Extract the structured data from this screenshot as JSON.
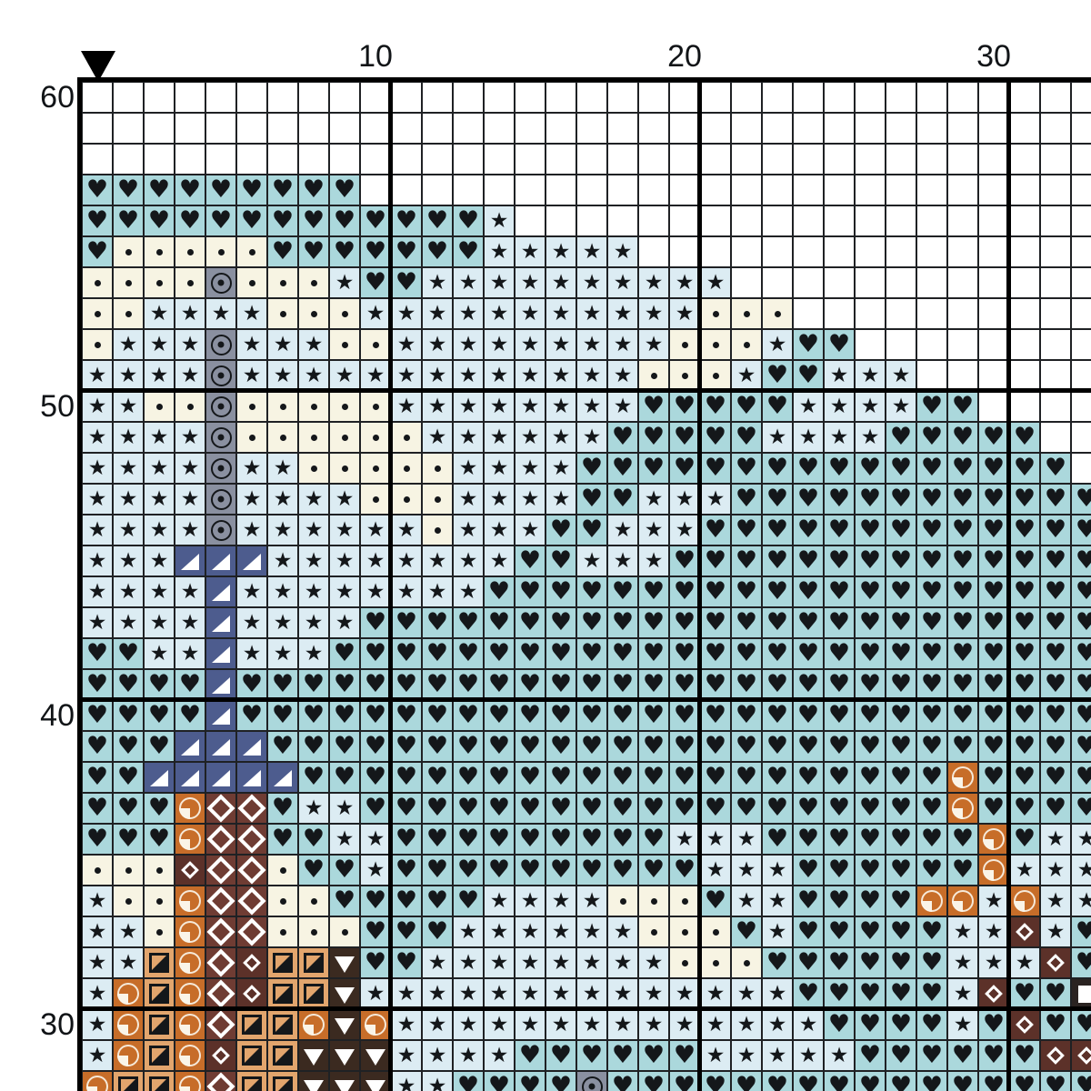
{
  "pattern": {
    "column_labels": [
      {
        "text": "10"
      },
      {
        "text": "20"
      },
      {
        "text": "30"
      }
    ],
    "row_labels": [
      {
        "text": "60"
      },
      {
        "text": "50"
      },
      {
        "text": "40"
      },
      {
        "text": "30"
      }
    ],
    "start_marker": {
      "icon": "down-triangle",
      "color": "#000000",
      "at_column": 1
    },
    "grid_lines": {
      "thin": "#1f2124",
      "thick": "#000000",
      "major_every": 10
    },
    "palette": {
      ".": {
        "name": "empty",
        "bg": "#ffffff"
      },
      "h": {
        "name": "heart",
        "bg": "#abd8dc",
        "glyph": "♥",
        "glyph_color": "#14171a"
      },
      "s": {
        "name": "star",
        "bg": "#dcecf3",
        "glyph": "★",
        "glyph_color": "#14171a"
      },
      "d": {
        "name": "small-dot",
        "bg": "#f7f4e3",
        "glyph": "•",
        "glyph_color": "#14171a"
      },
      "t": {
        "name": "circled-dot",
        "bg": "#8a90a0",
        "glyph": "◉",
        "glyph_color": "#14171a"
      },
      "n": {
        "name": "corner-triangle",
        "bg": "#4d5c8e",
        "glyph": "◢",
        "glyph_color": "#ffffff"
      },
      "q": {
        "name": "quarter-circle",
        "bg": "#c76d29",
        "glyph": "◔",
        "glyph_color": "#faf4e8"
      },
      "g": {
        "name": "diagonal-half-square",
        "bg": "#e2a56d",
        "glyph": "◪",
        "glyph_color": "#14171a"
      },
      "D": {
        "name": "diamond-outline",
        "bg": "#6f3c33",
        "glyph": "◇",
        "glyph_color": "#ffffff"
      },
      "m": {
        "name": "small-diamond-outline",
        "bg": "#5c3129",
        "glyph": "◇",
        "glyph_color": "#ffffff"
      },
      "v": {
        "name": "down-triangle",
        "bg": "#3b2a20",
        "glyph": "▼",
        "glyph_color": "#ffffff"
      },
      "w": {
        "name": "solid-square",
        "bg": "#2a2321",
        "glyph": "■",
        "glyph_color": "#ffffff"
      }
    },
    "rows": [
      {
        "row": 60,
        "cells": "................................."
      },
      {
        "row": 59,
        "cells": "................................."
      },
      {
        "row": 58,
        "cells": "................................."
      },
      {
        "row": 57,
        "cells": "hhhhhhhhh........................"
      },
      {
        "row": 56,
        "cells": "hhhhhhhhhhhhhs..................."
      },
      {
        "row": 55,
        "cells": "hdddddhhhhhhhsssss..............."
      },
      {
        "row": 54,
        "cells": "ddddtdddshhssssssssss............"
      },
      {
        "row": 53,
        "cells": "ddssssdddsssssssssssddd.........."
      },
      {
        "row": 52,
        "cells": "dssstsssddsssssssssdddshh........"
      },
      {
        "row": 51,
        "cells": "sssstsssssssssssssdddshhsss......"
      },
      {
        "row": 50,
        "cells": "ssddtdddddsssssssshhhhhsssshh...."
      },
      {
        "row": 49,
        "cells": "sssstddddddsssssshhhhhsssshhhhh.."
      },
      {
        "row": 48,
        "cells": "sssstssdddddsssshhhhhhhhhhhhhhhh."
      },
      {
        "row": 47,
        "cells": "sssstssssdddsssshhssshhhhhhhhhhhh"
      },
      {
        "row": 46,
        "cells": "sssstssssssdssshhssshhhhhhhhhhhhh"
      },
      {
        "row": 45,
        "cells": "sssnnnsssssssshhssshhhhhhhhhhhhhh"
      },
      {
        "row": 44,
        "cells": "ssssnsssssssshhhhhhhhhhhhhhhhhhhh"
      },
      {
        "row": 43,
        "cells": "ssssnsssshhhhhhhhhhhhhhhhhhhhhhhh"
      },
      {
        "row": 42,
        "cells": "hhssnssshhhhhhhhhhhhhhhhhhhhhhhhh"
      },
      {
        "row": 41,
        "cells": "hhhhnhhhhhhhhhhhhhhhhhhhhhhhhhhhh"
      },
      {
        "row": 40,
        "cells": "hhhhnhhhhhhhhhhhhhhhhhhhhhhhhhhhh"
      },
      {
        "row": 39,
        "cells": "hhhnnnhhhhhhhhhhhhhhhhhhhhhhhhhhh"
      },
      {
        "row": 38,
        "cells": "hhnnnnnhhhhhhhhhhhhhhhhhhhhhqhhhh"
      },
      {
        "row": 37,
        "cells": "hhhqDDhsshhhhhhhhhhhhhhhhhhhqhhhh"
      },
      {
        "row": 36,
        "cells": "hhhqDDhhsshhhhhhhhhssshhhhhhhqhss"
      },
      {
        "row": 35,
        "cells": "dddmDDdhhshhhhhhhhhhssshhhhhhqsss"
      },
      {
        "row": 34,
        "cells": "sddqDDddhhhhhssssdddhsshhhhqqsqss"
      },
      {
        "row": 33,
        "cells": "ssdqDDdddhhhssssssdddhshhhhhssmsh"
      },
      {
        "row": 32,
        "cells": "ssgqDmggvhhssssssssdddhhhhhhsssmh"
      },
      {
        "row": 31,
        "cells": "sqgqDmggvsssssssssssssshhhhhsmhhw"
      },
      {
        "row": 30,
        "cells": "sqgqDggqvqsssssssssssssshhhhshmhh"
      },
      {
        "row": 29,
        "cells": "sqgqmggvvvsssshhhhhhssssshhhhhhmm"
      },
      {
        "row": 28,
        "cells": "qggqDggvvvsshhhhthhhhhhhhhhhhhhhh"
      }
    ]
  }
}
